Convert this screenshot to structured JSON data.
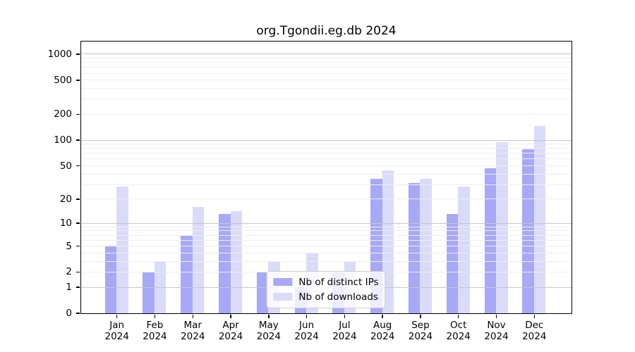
{
  "title": "org.Tgondii.eg.db 2024",
  "chart_data": {
    "type": "bar",
    "title": "org.Tgondii.eg.db 2024",
    "scale": "log1p",
    "categories": [
      "Jan",
      "Feb",
      "Mar",
      "Apr",
      "May",
      "Jun",
      "Jul",
      "Aug",
      "Sep",
      "Oct",
      "Nov",
      "Dec"
    ],
    "category_year": "2024",
    "series": [
      {
        "name": "Nb of distinct IPs",
        "key": "distinct-ips",
        "color": "#a7a8f6",
        "values": [
          5,
          2,
          7,
          13,
          2,
          1,
          2,
          35,
          31,
          13,
          46,
          78
        ]
      },
      {
        "name": "Nb of downloads",
        "key": "downloads",
        "color": "#dadbf9",
        "values": [
          28,
          3,
          16,
          14,
          3,
          4,
          3,
          44,
          35,
          28,
          93,
          145
        ]
      }
    ],
    "y_ticks": [
      0,
      1,
      2,
      5,
      10,
      20,
      50,
      100,
      200,
      500,
      1000
    ],
    "ylim": [
      0,
      1400
    ],
    "xlabel": "",
    "ylabel": "",
    "grid": "on",
    "legend_position": "lower-center"
  },
  "colors": {
    "major_grid": "#c6c6c6",
    "minor_grid": "#ededed",
    "axis": "#000000",
    "legend_border": "#cccccc"
  }
}
